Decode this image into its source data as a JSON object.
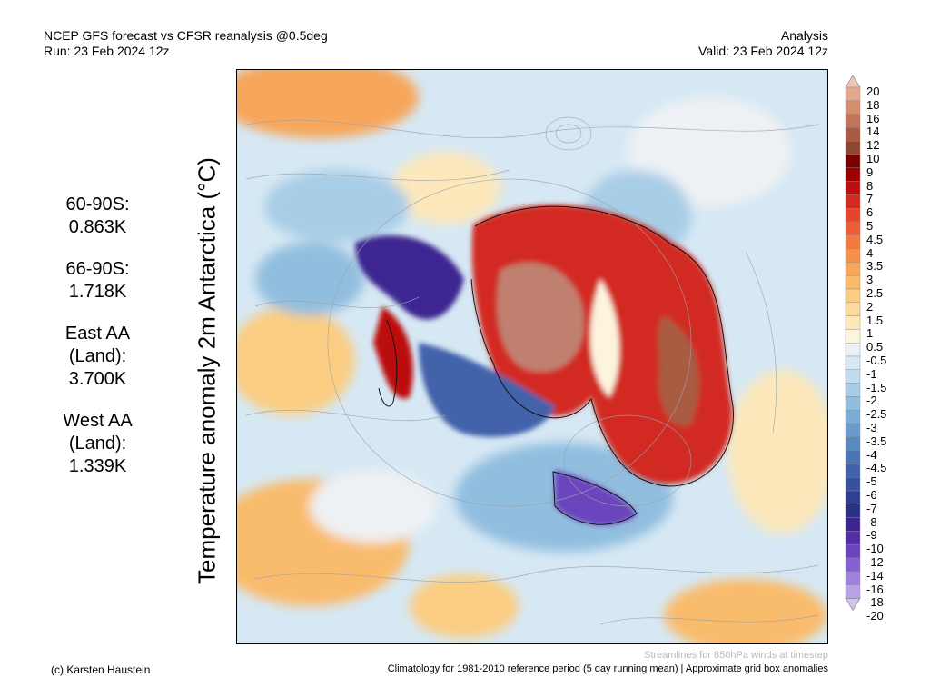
{
  "header": {
    "title_line1": "NCEP GFS forecast vs CFSR reanalysis @0.5deg",
    "title_line2": "Run: 23 Feb 2024 12z",
    "type": "Analysis",
    "valid": "Valid: 23 Feb 2024 12z"
  },
  "stats": [
    {
      "label": "60-90S:",
      "value": "0.863K"
    },
    {
      "label": "66-90S:",
      "value": "1.718K"
    },
    {
      "label": "East AA\n(Land):",
      "value": "3.700K"
    },
    {
      "label": "West AA\n(Land):",
      "value": "1.339K"
    }
  ],
  "vertical_title": "Temperature anomaly 2m Antarctica (°C)",
  "colorbar": {
    "labels": [
      "20",
      "18",
      "16",
      "14",
      "12",
      "10",
      "9",
      "8",
      "7",
      "6",
      "5",
      "4.5",
      "4",
      "3.5",
      "3",
      "2.5",
      "2",
      "1.5",
      "1",
      "0.5",
      "-0.5",
      "-1",
      "-1.5",
      "-2",
      "-2.5",
      "-3",
      "-3.5",
      "-4",
      "-4.5",
      "-5",
      "-6",
      "-7",
      "-8",
      "-9",
      "-10",
      "-12",
      "-14",
      "-16",
      "-18",
      "-20"
    ],
    "colors": [
      "#f4c7b4",
      "#e4a88e",
      "#d38e72",
      "#c07459",
      "#a95c42",
      "#8f4530",
      "#7a0000",
      "#9c0000",
      "#bb1010",
      "#d22a20",
      "#e5452a",
      "#ee5d35",
      "#f47a40",
      "#f6914d",
      "#f7a65a",
      "#f9bb6c",
      "#fbcd82",
      "#fcdb9c",
      "#fde8bb",
      "#fdf4de",
      "#eef1f4",
      "#d6e8f4",
      "#c1dcee",
      "#a8cde6",
      "#91bedf",
      "#7aaed7",
      "#6a9bcc",
      "#5a88c0",
      "#4d75b5",
      "#4262aa",
      "#37519d",
      "#2f3f91",
      "#2b2f85",
      "#3d2591",
      "#522fa5",
      "#6a44bd",
      "#8461d0",
      "#9e82dc",
      "#b7a3e6",
      "#cec4ef"
    ]
  },
  "map_colors": {
    "ocean": "#d6e8f4",
    "warm": "#f9bb6c",
    "cool": "#91bedf",
    "east_aa": "#d22a20",
    "east_core": "#c08070",
    "west_cold": "#3d2591"
  },
  "footer": {
    "streamline_note": "Streamlines for 850hPa winds at timestep",
    "copyright": "(c) Karsten Haustein",
    "climatology": "Climatology for 1981-2010 reference period (5 day running mean) | Approximate grid box anomalies"
  }
}
